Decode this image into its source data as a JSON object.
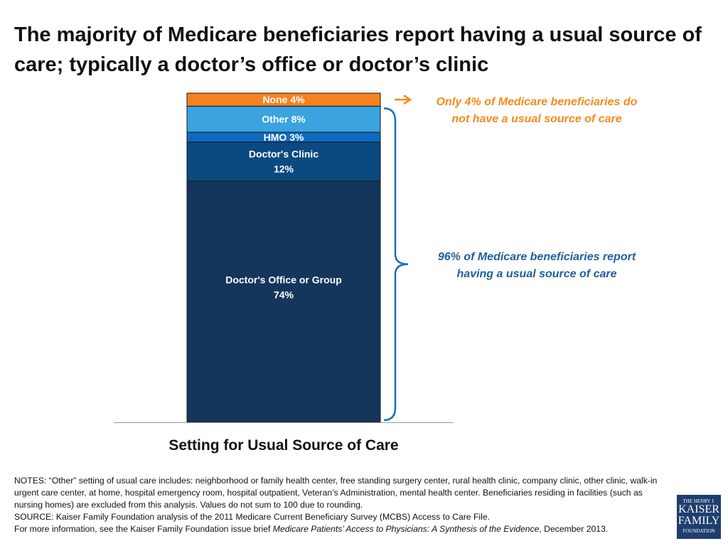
{
  "title": "The majority of Medicare beneficiaries report having a usual source of care; typically a doctor’s office or doctor’s clinic",
  "chart_data": {
    "type": "bar",
    "stacked": true,
    "xlabel": "Setting for Usual Source of Care",
    "segments": [
      {
        "label": "Doctor's Office or Group",
        "value": 74,
        "display": "74%",
        "color": "#15365c"
      },
      {
        "label": "Doctor's Clinic",
        "value": 12,
        "display": "12%",
        "color": "#0b4a80"
      },
      {
        "label": "HMO",
        "value": 3,
        "display": "3%",
        "color": "#0d6bbf"
      },
      {
        "label": "Other",
        "value": 8,
        "display": "8%",
        "color": "#3aa3e0"
      },
      {
        "label": "None",
        "value": 4,
        "display": "4%",
        "color": "#f58220"
      }
    ],
    "annotations": {
      "none": "Only 4% of Medicare beneficiaries do not have a usual source of care",
      "usual": "96% of Medicare beneficiaries report having a usual source of care"
    }
  },
  "notes": {
    "line1": "NOTES: “Other” setting of usual care includes: neighborhood or family health center, free standing surgery center, rural health clinic, company clinic, other clinic, walk-in urgent care center, at home, hospital emergency room, hospital outpatient, Veteran’s Administration, mental health center. Beneficiaries residing in facilities (such as nursing homes) are excluded from this analysis.  Values do not sum to 100 due to rounding.",
    "source": "SOURCE: Kaiser Family Foundation analysis of the 2011 Medicare Current Beneficiary Survey (MCBS) Access to Care File.",
    "more_prefix": "For more information, see the Kaiser Family Foundation issue brief ",
    "more_title": "Medicare Patients’ Access to Physicians: A Synthesis of the Evidence",
    "more_suffix": ", December 2013."
  },
  "logo": {
    "l1": "THE HENRY J.",
    "l2": "KAISER",
    "l3": "FAMILY",
    "l4": "FOUNDATION"
  }
}
